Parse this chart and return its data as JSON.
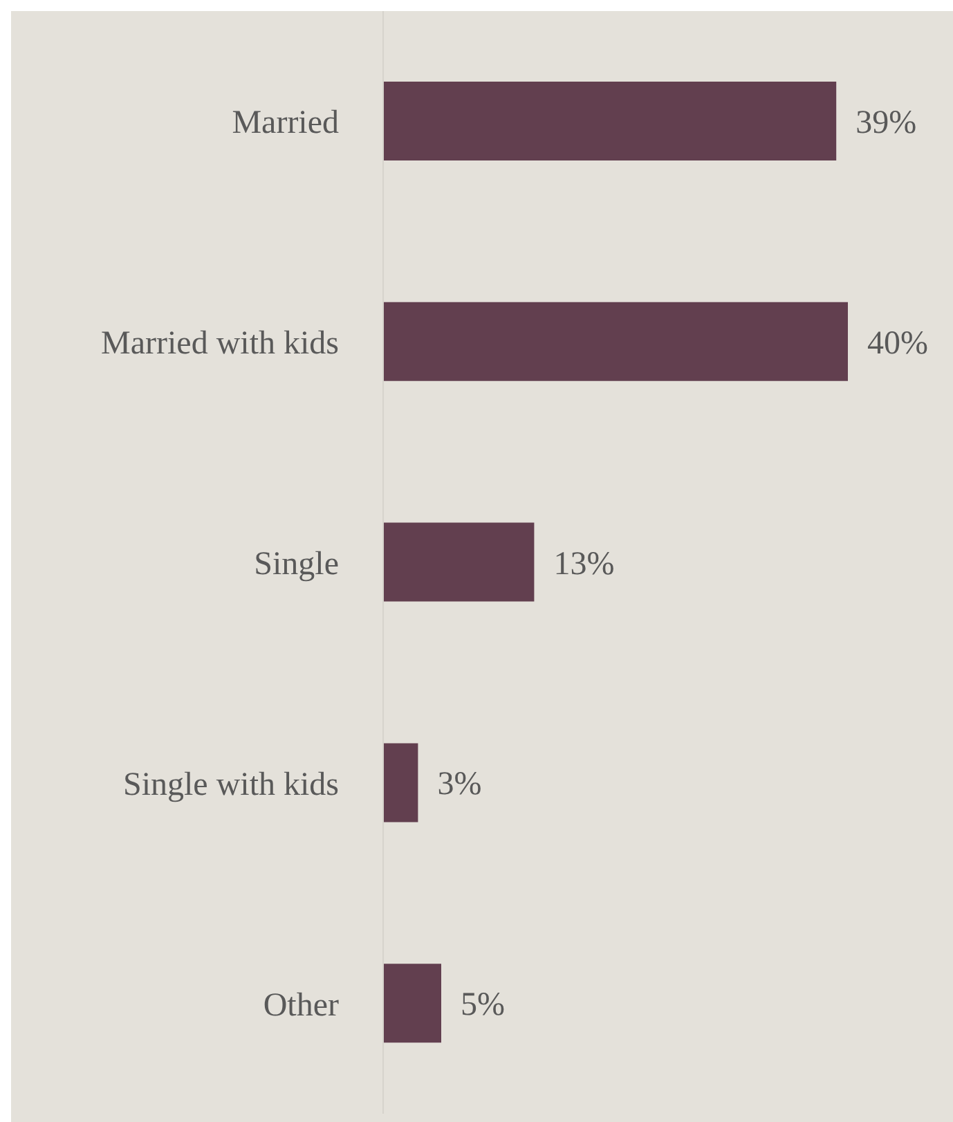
{
  "chart_data": {
    "type": "bar",
    "orientation": "horizontal",
    "categories": [
      "Married",
      "Married with kids",
      "Single",
      "Single with kids",
      "Other"
    ],
    "values": [
      39,
      40,
      13,
      3,
      5
    ],
    "color": "#623f4f",
    "value_labels": [
      "39%",
      "40%",
      "13%",
      "3%",
      "5%"
    ]
  }
}
